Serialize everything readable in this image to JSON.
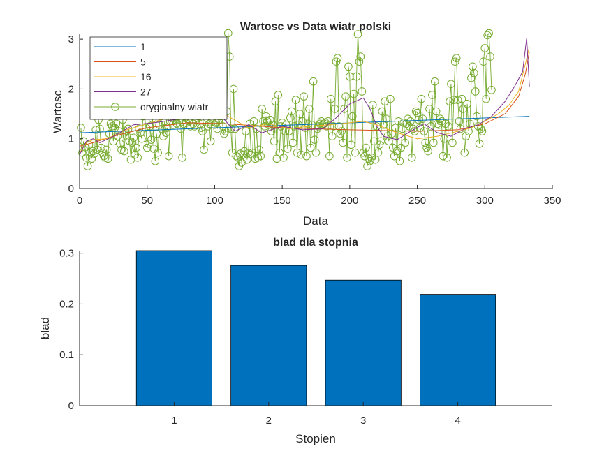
{
  "chart_data": [
    {
      "type": "line",
      "title": "Wartosc vs Data wiatr polski",
      "xlabel": "Data",
      "ylabel": "Wartosc",
      "xlim": [
        0,
        350
      ],
      "ylim": [
        0,
        3.1
      ],
      "xticks": [
        "0",
        "50",
        "100",
        "150",
        "200",
        "250",
        "300",
        "350"
      ],
      "yticks": [
        "0",
        "1",
        "2",
        "3"
      ],
      "grid": false,
      "legend_location": "top-left",
      "original_series": {
        "name": "oryginalny wiatr",
        "color": "#77ac30",
        "marker": "circle",
        "values": [
          1.22,
          0.72,
          0.95,
          0.83,
          0.62,
          0.45,
          0.88,
          0.72,
          0.6,
          0.75,
          0.7,
          1.18,
          0.78,
          1.38,
          1.2,
          0.82,
          0.72,
          0.65,
          0.62,
          0.78,
          0.6,
          1.1,
          1.3,
          1.25,
          0.95,
          1.22,
          1.3,
          1.05,
          1.15,
          0.9,
          0.78,
          1.38,
          0.75,
          1.15,
          1.05,
          1.2,
          0.95,
          0.58,
          0.92,
          1.02,
          0.68,
          0.82,
          0.62,
          1.2,
          1.12,
          1.0,
          1.45,
          1.55,
          1.22,
          0.82,
          0.9,
          1.25,
          0.98,
          1.4,
          0.8,
          0.55,
          1.1,
          0.72,
          1.28,
          1.45,
          1.2,
          1.05,
          1.35,
          1.12,
          1.22,
          0.65,
          1.35,
          1.42,
          1.28,
          1.5,
          1.38,
          1.3,
          1.45,
          1.38,
          1.2,
          0.62,
          1.3,
          1.42,
          1.32,
          1.4,
          1.35,
          1.25,
          1.52,
          1.3,
          1.25,
          1.38,
          1.5,
          1.45,
          1.3,
          1.22,
          1.15,
          0.78,
          1.5,
          1.42,
          1.25,
          1.3,
          0.95,
          1.4,
          1.55,
          1.28,
          1.32,
          1.2,
          1.38,
          1.45,
          1.7,
          1.25,
          1.1,
          1.15,
          1.55,
          3.12,
          2.65,
          1.2,
          0.72,
          2.0,
          1.2,
          0.65,
          0.62,
          0.45,
          0.7,
          0.52,
          0.68,
          0.75,
          1.15,
          0.58,
          0.72,
          1.3,
          0.68,
          0.72,
          1.35,
          0.6,
          1.2,
          0.62,
          0.78,
          0.65,
          1.6,
          1.35,
          1.25,
          1.45,
          1.35,
          1.28,
          1.38,
          1.15,
          1.28,
          0.95,
          1.75,
          0.6,
          1.88,
          0.72,
          1.25,
          1.32,
          0.62,
          1.15,
          1.28,
          0.8,
          1.15,
          1.42,
          1.55,
          0.92,
          1.25,
          1.78,
          0.72,
          1.28,
          1.5,
          0.68,
          1.35,
          1.85,
          1.22,
          0.65,
          1.3,
          1.6,
          0.82,
          1.28,
          2.15,
          0.98,
          0.72,
          1.2,
          1.25,
          1.3,
          1.35,
          1.28,
          1.3,
          1.32,
          1.25,
          1.35,
          0.65,
          1.8,
          1.05,
          1.25,
          1.6,
          2.55,
          2.62,
          1.25,
          1.1,
          1.15,
          0.92,
          1.6,
          1.85,
          0.62,
          2.45,
          2.25,
          0.88,
          1.45,
          1.9,
          0.72,
          2.25,
          3.1,
          2.55,
          2.65,
          1.95,
          0.72,
          0.65,
          0.82,
          0.45,
          0.6,
          0.55,
          0.62,
          1.68,
          0.95,
          0.58,
          1.25,
          0.72,
          0.88,
          0.95,
          1.55,
          1.28,
          1.75,
          1.4,
          1.05,
          0.95,
          1.8,
          1.1,
          0.82,
          0.65,
          1.22,
          0.75,
          1.35,
          0.55,
          0.82,
          1.2,
          1.32,
          0.92,
          1.3,
          1.4,
          1.25,
          1.35,
          0.62,
          1.2,
          1.15,
          1.55,
          1.52,
          1.38,
          1.22,
          1.8,
          1.4,
          1.15,
          0.92,
          0.82,
          0.75,
          1.6,
          1.25,
          1.88,
          0.92,
          2.15,
          1.55,
          1.3,
          1.28,
          1.4,
          1.35,
          0.65,
          1.0,
          1.3,
          0.62,
          1.25,
          1.75,
          2.1,
          0.92,
          1.78,
          2.55,
          2.62,
          1.78,
          1.35,
          1.2,
          1.8,
          1.6,
          0.72,
          1.05,
          1.7,
          1.15,
          1.3,
          2.22,
          2.45,
          2.32,
          1.95,
          1.45,
          1.25,
          0.9,
          1.2,
          1.15,
          2.55,
          2.82,
          1.8,
          3.08,
          3.12,
          2.65,
          1.98
        ]
      },
      "series": [
        {
          "name": "1",
          "color": "#0072bd",
          "x": [
            0,
            333
          ],
          "values": [
            1.12,
            1.45
          ]
        },
        {
          "name": "5",
          "color": "#d95319",
          "x": [
            0,
            10,
            25,
            50,
            80,
            110,
            150,
            200,
            250,
            280,
            300,
            315,
            325,
            330,
            333
          ],
          "values": [
            0.85,
            0.92,
            1.05,
            1.22,
            1.32,
            1.3,
            1.22,
            1.18,
            1.15,
            1.18,
            1.3,
            1.5,
            1.85,
            2.3,
            2.75
          ]
        },
        {
          "name": "16",
          "color": "#edb120",
          "x": [
            0,
            5,
            10,
            20,
            35,
            50,
            65,
            80,
            95,
            110,
            125,
            140,
            155,
            170,
            185,
            200,
            210,
            220,
            235,
            250,
            265,
            280,
            290,
            300,
            310,
            318,
            325,
            330,
            333
          ],
          "values": [
            0.72,
            0.92,
            0.98,
            1.0,
            1.18,
            1.3,
            1.42,
            1.55,
            1.65,
            1.45,
            1.22,
            1.3,
            1.2,
            1.25,
            1.28,
            1.32,
            1.35,
            1.28,
            1.12,
            1.0,
            1.05,
            1.15,
            1.22,
            1.35,
            1.5,
            1.68,
            1.95,
            2.5,
            2.85
          ]
        },
        {
          "name": "27",
          "color": "#7e2f8e",
          "x": [
            0,
            5,
            10,
            15,
            25,
            40,
            55,
            70,
            85,
            95,
            105,
            115,
            125,
            135,
            150,
            165,
            180,
            190,
            200,
            210,
            215,
            220,
            225,
            235,
            245,
            255,
            265,
            275,
            285,
            295,
            305,
            315,
            322,
            328,
            331,
            333
          ],
          "values": [
            0.68,
            0.95,
            1.0,
            0.92,
            1.05,
            1.28,
            1.32,
            1.38,
            1.48,
            1.58,
            1.45,
            1.15,
            1.28,
            1.12,
            1.25,
            1.18,
            1.2,
            1.42,
            1.7,
            1.82,
            1.6,
            1.25,
            1.05,
            0.98,
            1.15,
            1.3,
            1.12,
            1.05,
            1.2,
            1.28,
            1.45,
            1.75,
            2.05,
            2.35,
            3.02,
            2.05
          ]
        }
      ]
    },
    {
      "type": "bar",
      "title": "blad dla stopnia",
      "xlabel": "Stopien",
      "ylabel": "blad",
      "categories": [
        "1",
        "2",
        "3",
        "4"
      ],
      "values": [
        0.305,
        0.276,
        0.247,
        0.219
      ],
      "xlim": [
        0,
        5
      ],
      "ylim": [
        0,
        0.305
      ],
      "yticks": [
        "0",
        "0.1",
        "0.2",
        "0.3"
      ],
      "color": "#0072bd",
      "grid": false
    }
  ]
}
